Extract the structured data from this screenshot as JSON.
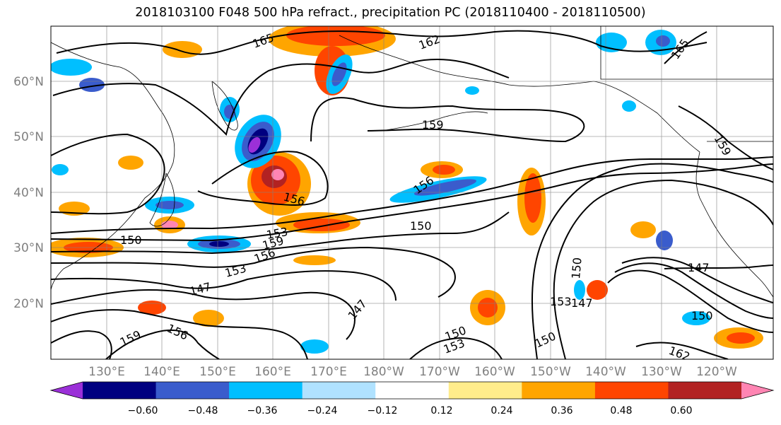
{
  "title": "2018103100 F048 500 hPa refract., precipitation PC (2018110400 - 2018110500)",
  "lon_labels": [
    "130°E",
    "140°E",
    "150°E",
    "160°E",
    "170°E",
    "180°W",
    "170°W",
    "160°W",
    "150°W",
    "140°W",
    "130°W",
    "120°W"
  ],
  "lat_labels": [
    "20°N",
    "30°N",
    "40°N",
    "50°N",
    "60°N"
  ],
  "contour_labels": [
    "165",
    "162",
    "165",
    "159",
    "159",
    "156",
    "156",
    "150",
    "153",
    "159",
    "156",
    "153",
    "150",
    "147",
    "147",
    "147",
    "150",
    "153",
    "150",
    "153",
    "147",
    "156",
    "150",
    "162",
    "159",
    "150"
  ],
  "colorbar": {
    "ticks": [
      "−0.60",
      "−0.48",
      "−0.36",
      "−0.24",
      "−0.12",
      "0.12",
      "0.24",
      "0.36",
      "0.48",
      "0.60"
    ],
    "colors": [
      "#9b30d8",
      "#000080",
      "#3a5ccc",
      "#00bfff",
      "#b0e2ff",
      "#ffffff",
      "#ffec8b",
      "#ffa500",
      "#ff4500",
      "#b22222",
      "#ff85b3"
    ]
  }
}
